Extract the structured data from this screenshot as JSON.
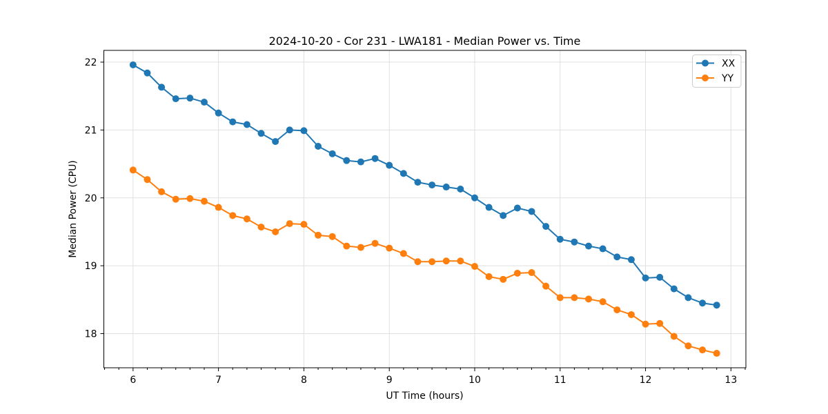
{
  "chart_data": {
    "type": "line",
    "title": "2024-10-20 - Cor 231 - LWA181 - Median Power vs. Time",
    "xlabel": "UT Time (hours)",
    "ylabel": "Median Power (CPU)",
    "x": [
      6.0,
      6.1667,
      6.3333,
      6.5,
      6.6667,
      6.8333,
      7.0,
      7.1667,
      7.3333,
      7.5,
      7.6667,
      7.8333,
      8.0,
      8.1667,
      8.3333,
      8.5,
      8.6667,
      8.8333,
      9.0,
      9.1667,
      9.3333,
      9.5,
      9.6667,
      9.8333,
      10.0,
      10.1667,
      10.3333,
      10.5,
      10.6667,
      10.8333,
      11.0,
      11.1667,
      11.3333,
      11.5,
      11.6667,
      11.8333,
      12.0,
      12.1667,
      12.3333,
      12.5,
      12.6667,
      12.8333
    ],
    "series": [
      {
        "name": "XX",
        "color": "#1f77b4",
        "values": [
          21.96,
          21.84,
          21.63,
          21.46,
          21.47,
          21.41,
          21.25,
          21.12,
          21.08,
          20.95,
          20.83,
          21.0,
          20.99,
          20.76,
          20.65,
          20.55,
          20.53,
          20.58,
          20.48,
          20.36,
          20.23,
          20.19,
          20.16,
          20.13,
          20.0,
          19.86,
          19.74,
          19.85,
          19.8,
          19.58,
          19.39,
          19.35,
          19.29,
          19.25,
          19.13,
          19.09,
          18.82,
          18.83,
          18.66,
          18.53,
          18.45,
          18.42
        ]
      },
      {
        "name": "YY",
        "color": "#ff7f0e",
        "values": [
          20.41,
          20.27,
          20.09,
          19.98,
          19.99,
          19.95,
          19.86,
          19.74,
          19.69,
          19.57,
          19.5,
          19.62,
          19.61,
          19.45,
          19.43,
          19.29,
          19.27,
          19.33,
          19.26,
          19.18,
          19.06,
          19.06,
          19.07,
          19.07,
          18.99,
          18.84,
          18.8,
          18.89,
          18.9,
          18.7,
          18.53,
          18.53,
          18.51,
          18.47,
          18.35,
          18.28,
          18.14,
          18.15,
          17.96,
          17.82,
          17.76,
          17.71
        ]
      }
    ],
    "xlim": [
      5.658,
      13.175
    ],
    "ylim": [
      17.497,
      22.173
    ],
    "x_ticks": [
      6,
      7,
      8,
      9,
      10,
      11,
      12,
      13
    ],
    "y_ticks": [
      18,
      19,
      20,
      21,
      22
    ],
    "x_minor_tick_step": 0.1667,
    "grid": true,
    "grid_color": "#dfdfdf",
    "spine_color": "#000000",
    "legend_position": "upper right",
    "marker": "circle",
    "line_width": 2,
    "marker_radius": 5
  }
}
